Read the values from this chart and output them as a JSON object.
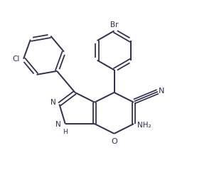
{
  "bg_color": "#ffffff",
  "line_color": "#2d2d4e",
  "text_color": "#2d2d4e",
  "line_width": 1.4,
  "figsize": [
    2.77,
    2.6
  ],
  "dpi": 100,
  "xlim": [
    0,
    10
  ],
  "ylim": [
    0,
    9.4
  ]
}
